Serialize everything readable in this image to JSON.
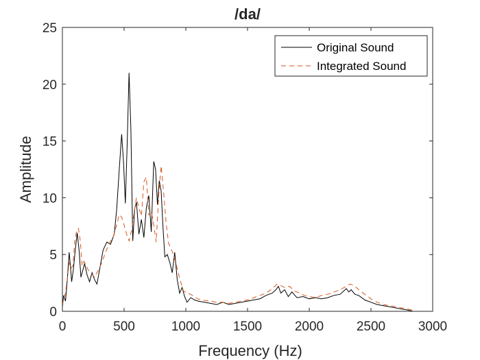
{
  "chart_data": {
    "type": "line",
    "title": "/da/",
    "xlabel": "Frequency (Hz)",
    "ylabel": "Amplitude",
    "xlim": [
      0,
      3000
    ],
    "ylim": [
      0,
      25
    ],
    "xticks": [
      0,
      500,
      1000,
      1500,
      2000,
      2500,
      3000
    ],
    "yticks": [
      0,
      5,
      10,
      15,
      20,
      25
    ],
    "grid": false,
    "legend_position": "top-right",
    "series": [
      {
        "name": "Original Sound",
        "color": "#000000",
        "style": "solid",
        "x": [
          0,
          10,
          25,
          40,
          55,
          65,
          75,
          90,
          105,
          120,
          135,
          150,
          165,
          180,
          200,
          220,
          240,
          260,
          280,
          300,
          330,
          360,
          390,
          420,
          440,
          460,
          480,
          495,
          510,
          525,
          540,
          555,
          570,
          585,
          600,
          620,
          640,
          660,
          680,
          700,
          720,
          740,
          755,
          770,
          785,
          800,
          815,
          830,
          850,
          870,
          890,
          910,
          930,
          950,
          970,
          990,
          1010,
          1040,
          1070,
          1100,
          1150,
          1200,
          1250,
          1300,
          1350,
          1400,
          1450,
          1500,
          1550,
          1600,
          1650,
          1700,
          1730,
          1750,
          1770,
          1800,
          1830,
          1860,
          1900,
          1950,
          2000,
          2050,
          2100,
          2150,
          2200,
          2250,
          2280,
          2300,
          2320,
          2340,
          2370,
          2400,
          2450,
          2500,
          2550,
          2600,
          2650,
          2700,
          2750,
          2800,
          2840
        ],
        "values": [
          0.4,
          1.4,
          0.9,
          2.8,
          5.2,
          4.0,
          2.6,
          3.8,
          5.5,
          6.9,
          5.4,
          3.0,
          3.6,
          4.2,
          3.2,
          2.6,
          3.4,
          2.8,
          2.4,
          3.6,
          5.4,
          6.1,
          5.9,
          6.8,
          9.0,
          12.4,
          15.6,
          13.2,
          9.5,
          14.8,
          21.0,
          16.0,
          6.2,
          9.0,
          9.6,
          6.8,
          8.1,
          6.5,
          9.1,
          10.2,
          7.0,
          13.2,
          12.5,
          9.4,
          11.5,
          10.6,
          7.4,
          4.8,
          5.0,
          4.3,
          3.4,
          5.2,
          2.8,
          1.6,
          2.1,
          1.3,
          0.8,
          1.2,
          1.0,
          0.9,
          0.8,
          0.7,
          0.6,
          0.8,
          0.6,
          0.7,
          0.8,
          0.9,
          1.0,
          1.1,
          1.4,
          1.6,
          1.9,
          2.2,
          1.6,
          1.9,
          1.3,
          1.7,
          1.2,
          1.3,
          1.1,
          1.2,
          1.1,
          1.2,
          1.4,
          1.5,
          1.8,
          2.0,
          1.7,
          1.9,
          1.5,
          1.4,
          1.0,
          0.8,
          0.6,
          0.5,
          0.4,
          0.3,
          0.2,
          0.1,
          0.0
        ]
      },
      {
        "name": "Integrated Sound",
        "color": "#D95319",
        "style": "dashed",
        "x": [
          0,
          10,
          25,
          40,
          55,
          70,
          85,
          100,
          115,
          130,
          145,
          160,
          175,
          190,
          210,
          230,
          260,
          290,
          320,
          350,
          380,
          410,
          440,
          460,
          480,
          500,
          520,
          540,
          560,
          580,
          600,
          620,
          640,
          660,
          680,
          700,
          720,
          740,
          760,
          780,
          800,
          820,
          840,
          860,
          880,
          900,
          920,
          950,
          980,
          1010,
          1040,
          1080,
          1120,
          1200,
          1250,
          1300,
          1350,
          1400,
          1450,
          1500,
          1550,
          1600,
          1650,
          1700,
          1740,
          1760,
          1800,
          1840,
          1880,
          1920,
          1960,
          2000,
          2050,
          2100,
          2150,
          2200,
          2250,
          2300,
          2330,
          2360,
          2400,
          2450,
          2500,
          2550,
          2600,
          2650,
          2700,
          2750,
          2800,
          2840
        ],
        "values": [
          0.5,
          1.1,
          1.6,
          2.9,
          4.3,
          3.8,
          4.0,
          6.2,
          7.1,
          7.3,
          6.2,
          4.0,
          4.4,
          4.1,
          3.6,
          3.4,
          3.0,
          3.6,
          4.3,
          5.2,
          6.0,
          6.5,
          7.6,
          8.5,
          8.3,
          7.6,
          6.8,
          6.2,
          7.1,
          8.6,
          10.0,
          9.1,
          8.4,
          11.4,
          11.8,
          8.5,
          8.8,
          7.6,
          6.1,
          10.2,
          12.8,
          10.5,
          7.8,
          6.0,
          5.5,
          5.0,
          4.2,
          2.9,
          1.8,
          1.6,
          1.5,
          1.2,
          1.0,
          0.9,
          0.8,
          0.8,
          0.7,
          0.8,
          0.9,
          1.0,
          1.2,
          1.4,
          1.6,
          2.0,
          2.4,
          2.3,
          2.1,
          2.2,
          1.8,
          1.6,
          1.4,
          1.3,
          1.2,
          1.4,
          1.5,
          1.7,
          1.9,
          2.2,
          2.4,
          2.3,
          1.9,
          1.5,
          1.1,
          0.8,
          0.6,
          0.5,
          0.4,
          0.3,
          0.2,
          0.1
        ]
      }
    ]
  }
}
